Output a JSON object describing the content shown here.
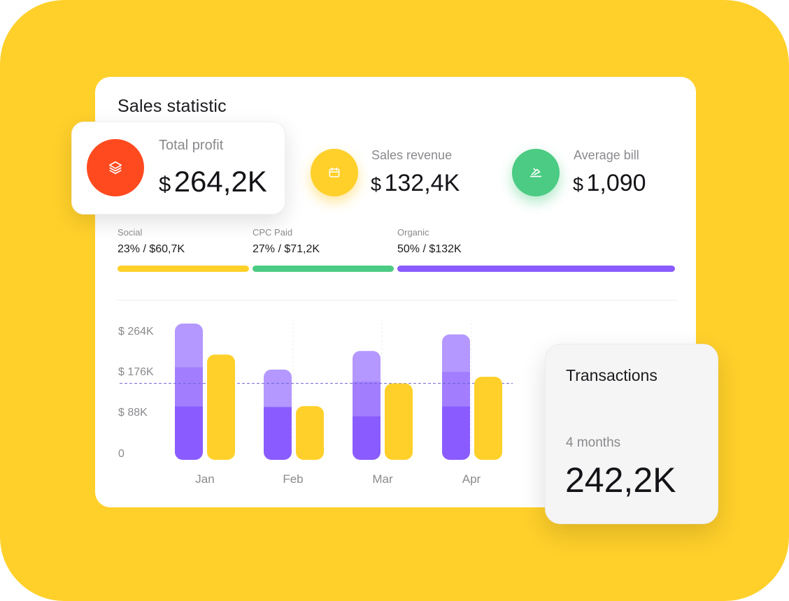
{
  "card": {
    "title": "Sales statistic"
  },
  "stats": {
    "total_profit": {
      "label": "Total profit",
      "currency": "$",
      "value": "264,2K",
      "color": "#FF4A1F",
      "icon": "layers-icon"
    },
    "sales_revenue": {
      "label": "Sales revenue",
      "currency": "$",
      "value": "132,4K",
      "color": "#FFD02A",
      "icon": "calendar-icon"
    },
    "average_bill": {
      "label": "Average bill",
      "currency": "$",
      "value": "1,090",
      "color": "#4BCB83",
      "icon": "money-hand-icon"
    }
  },
  "sources": [
    {
      "label": "Social",
      "value": "23% / $60,7K",
      "color": "#FFD02A",
      "share": 0.23
    },
    {
      "label": "CPC Paid",
      "value": "27% / $71,2K",
      "color": "#4BCB83",
      "share": 0.27
    },
    {
      "label": "Organic",
      "value": "50% / $132K",
      "color": "#8A5CFF",
      "share": 0.5
    }
  ],
  "chart_data": {
    "type": "bar",
    "categories": [
      "Jan",
      "Feb",
      "Mar",
      "Apr"
    ],
    "y_ticks": [
      "$ 264K",
      "$ 176K",
      "$ 88K",
      "0"
    ],
    "ylim": [
      0,
      264
    ],
    "reference_line": 148,
    "series": [
      {
        "values": [
          264,
          175,
          211,
          243
        ],
        "stack_segments": [
          [
            104,
            76,
            84
          ],
          [
            103,
            0,
            72
          ],
          [
            85,
            67,
            59
          ],
          [
            104,
            67,
            72
          ]
        ],
        "colors": [
          "#8A5CFF",
          "#A27EFF",
          "#B497FF"
        ]
      },
      {
        "values": [
          204,
          104,
          148,
          161
        ],
        "color": "#FFD02A"
      }
    ],
    "grid": "vertical dashed"
  },
  "transactions": {
    "title": "Transactions",
    "period": "4 months",
    "value": "242,2K"
  }
}
